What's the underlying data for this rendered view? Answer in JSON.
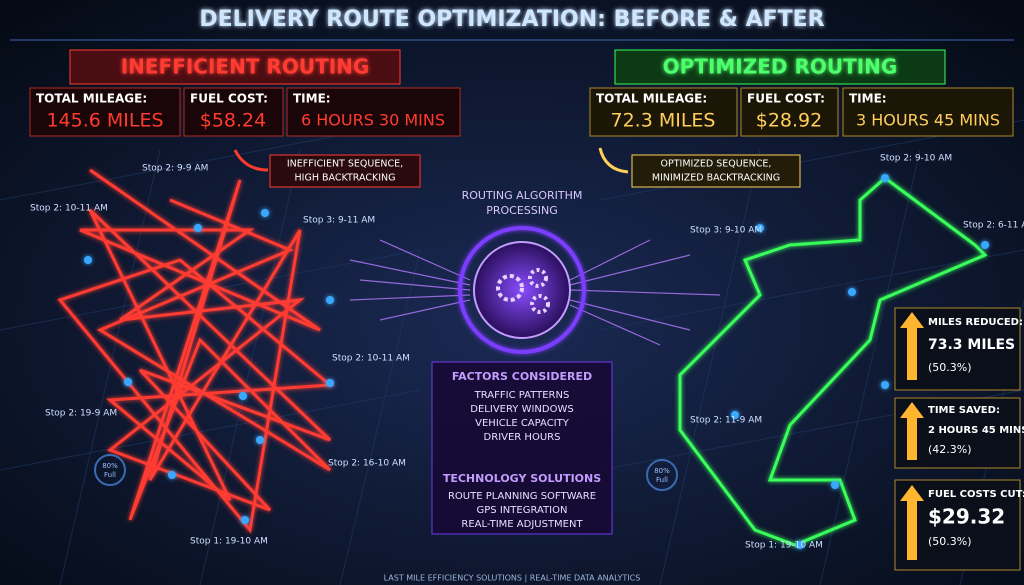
{
  "title": "DELIVERY ROUTE OPTIMIZATION: BEFORE & AFTER",
  "before": {
    "heading": "INEFFICIENT ROUTING",
    "metrics": [
      {
        "label": "TOTAL MILEAGE:",
        "value": "145.6 MILES"
      },
      {
        "label": "FUEL COST:",
        "value": "$58.24"
      },
      {
        "label": "TIME:",
        "value": "6 HOURS 30 MINS"
      }
    ],
    "callout": [
      "INEFFICIENT SEQUENCE,",
      "HIGH BACKTRACKING"
    ],
    "stops": [
      "Stop 2: 9-9 AM",
      "Stop 2: 10-11 AM",
      "Stop 3: 9-11 AM",
      "Stop 2: 10-11 AM",
      "Stop 2: 19-9 AM",
      "Stop 2: 16-10 AM",
      "Stop 1: 19-10 AM"
    ],
    "gauge": [
      "80%",
      "Full"
    ]
  },
  "after": {
    "heading": "OPTIMIZED ROUTING",
    "metrics": [
      {
        "label": "TOTAL MILEAGE:",
        "value": "72.3 MILES"
      },
      {
        "label": "FUEL COST:",
        "value": "$28.92"
      },
      {
        "label": "TIME:",
        "value": "3 HOURS 45 MINS"
      }
    ],
    "callout": [
      "OPTIMIZED SEQUENCE,",
      "MINIMIZED BACKTRACKING"
    ],
    "stops": [
      "Stop 2: 9-10 AM",
      "Stop 3: 9-10 AM",
      "Stop 2: 6-11 AM",
      "Stop 2: 11-9 AM",
      "Stop 1: 19-10 AM"
    ],
    "gauge": [
      "80%",
      "Full"
    ]
  },
  "center": {
    "processing": [
      "ROUTING ALGORITHM",
      "PROCESSING"
    ],
    "factors": {
      "heading": "FACTORS CONSIDERED",
      "items": [
        "TRAFFIC PATTERNS",
        "DELIVERY WINDOWS",
        "VEHICLE CAPACITY",
        "DRIVER HOURS"
      ]
    },
    "technology": {
      "heading": "TECHNOLOGY SOLUTIONS",
      "items": [
        "ROUTE PLANNING SOFTWARE",
        "GPS INTEGRATION",
        "REAL-TIME ADJUSTMENT"
      ]
    }
  },
  "savings": [
    {
      "label": "MILES REDUCED:",
      "value": "73.3 MILES",
      "percent": "(50.3%)"
    },
    {
      "label": "TIME SAVED:",
      "value": "2 HOURS 45 MINS",
      "percent": "(42.3%)"
    },
    {
      "label": "FUEL COSTS CUT:",
      "value": "$29.32",
      "percent": "(50.3%)"
    }
  ],
  "footer": "LAST MILE EFFICIENCY SOLUTIONS | REAL-TIME DATA ANALYTICS"
}
